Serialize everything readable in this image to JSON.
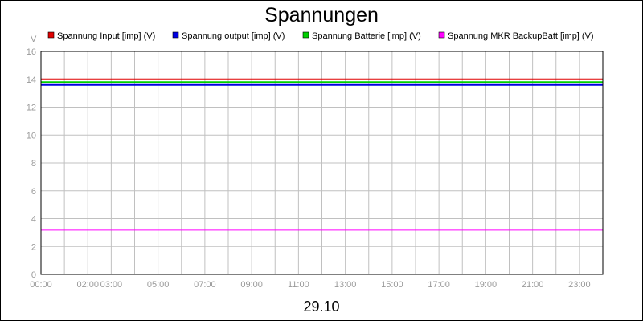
{
  "chart_data": {
    "type": "line",
    "title": "Spannungen",
    "xlabel": "29.10",
    "ylabel": "V",
    "ylim": [
      0,
      16
    ],
    "yticks": [
      0,
      2,
      4,
      6,
      8,
      10,
      12,
      14,
      16
    ],
    "xlim": [
      0,
      24
    ],
    "x_ticks": [
      {
        "hour": 0,
        "label": "00:00"
      },
      {
        "hour": 2,
        "label": "02:00"
      },
      {
        "hour": 3,
        "label": "03:00"
      },
      {
        "hour": 5,
        "label": "05:00"
      },
      {
        "hour": 7,
        "label": "07:00"
      },
      {
        "hour": 9,
        "label": "09:00"
      },
      {
        "hour": 11,
        "label": "11:00"
      },
      {
        "hour": 13,
        "label": "13:00"
      },
      {
        "hour": 15,
        "label": "15:00"
      },
      {
        "hour": 17,
        "label": "17:00"
      },
      {
        "hour": 19,
        "label": "19:00"
      },
      {
        "hour": 21,
        "label": "21:00"
      },
      {
        "hour": 23,
        "label": "23:00"
      }
    ],
    "grid": true,
    "legend_position": "top",
    "series": [
      {
        "name": "Spannung Input [imp] (V)",
        "color": "#e00000",
        "x": [
          0,
          1,
          2,
          3,
          4,
          5,
          6,
          7,
          8,
          9,
          10,
          11,
          12,
          13,
          14,
          15,
          16,
          17,
          18,
          19,
          20,
          21,
          22,
          23,
          24
        ],
        "values": [
          14.0,
          14.0,
          14.0,
          14.0,
          14.0,
          14.0,
          14.0,
          14.0,
          14.0,
          14.0,
          14.0,
          14.0,
          14.0,
          14.0,
          14.0,
          14.0,
          14.0,
          14.0,
          14.0,
          14.0,
          14.0,
          14.0,
          14.0,
          14.0,
          14.0
        ]
      },
      {
        "name": "Spannung output [imp] (V)",
        "color": "#0000e0",
        "x": [
          0,
          1,
          2,
          3,
          4,
          5,
          6,
          7,
          8,
          9,
          10,
          11,
          12,
          13,
          14,
          15,
          16,
          17,
          18,
          19,
          20,
          21,
          22,
          23,
          24
        ],
        "values": [
          13.6,
          13.6,
          13.6,
          13.6,
          13.6,
          13.6,
          13.6,
          13.6,
          13.6,
          13.6,
          13.6,
          13.6,
          13.6,
          13.6,
          13.6,
          13.6,
          13.6,
          13.6,
          13.6,
          13.6,
          13.6,
          13.6,
          13.6,
          13.6,
          13.6
        ]
      },
      {
        "name": "Spannung Batterie [imp] (V)",
        "color": "#00d000",
        "x": [
          0,
          1,
          2,
          3,
          4,
          5,
          6,
          7,
          8,
          9,
          10,
          11,
          12,
          13,
          14,
          15,
          16,
          17,
          18,
          19,
          20,
          21,
          22,
          23,
          24
        ],
        "values": [
          13.8,
          13.8,
          13.8,
          13.8,
          13.8,
          13.8,
          13.8,
          13.8,
          13.8,
          13.8,
          13.8,
          13.8,
          13.8,
          13.8,
          13.8,
          13.8,
          13.8,
          13.8,
          13.8,
          13.8,
          13.8,
          13.8,
          13.8,
          13.8,
          13.8
        ]
      },
      {
        "name": "Spannung MKR BackupBatt [imp] (V)",
        "color": "#ff00ff",
        "x": [
          0,
          1,
          2,
          3,
          4,
          5,
          6,
          7,
          8,
          9,
          10,
          11,
          12,
          13,
          14,
          15,
          16,
          17,
          18,
          19,
          20,
          21,
          22,
          23,
          24
        ],
        "values": [
          3.2,
          3.2,
          3.2,
          3.2,
          3.2,
          3.2,
          3.2,
          3.2,
          3.2,
          3.2,
          3.2,
          3.2,
          3.2,
          3.2,
          3.2,
          3.2,
          3.2,
          3.2,
          3.2,
          3.2,
          3.2,
          3.2,
          3.2,
          3.2,
          3.2
        ]
      }
    ]
  }
}
